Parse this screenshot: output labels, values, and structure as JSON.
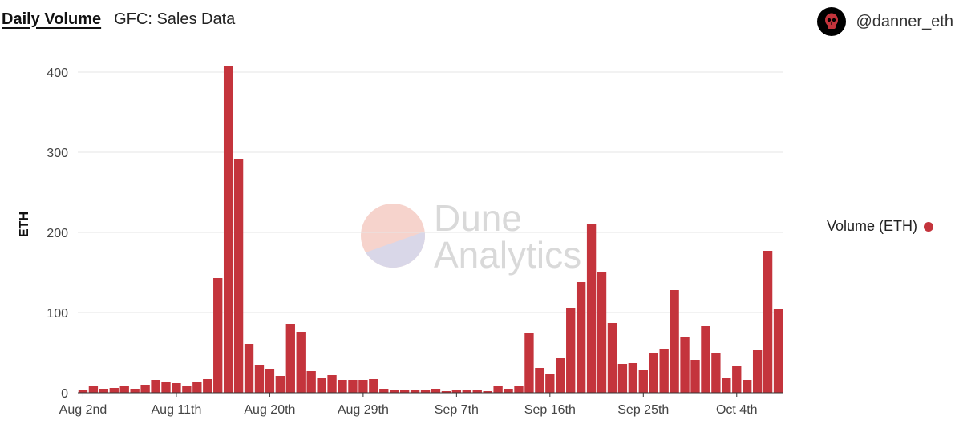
{
  "header": {
    "title": "Daily Volume",
    "subtitle": "GFC: Sales Data"
  },
  "author": {
    "name": "@danner_eth"
  },
  "watermark": {
    "line1": "Dune",
    "line2": "Analytics"
  },
  "legend": {
    "label": "Volume (ETH)",
    "color": "#c4343c"
  },
  "chart_data": {
    "type": "bar",
    "title": "Daily Volume",
    "subtitle": "GFC: Sales Data",
    "ylabel": "ETH",
    "xlabel": "",
    "ylim": [
      0,
      420
    ],
    "yticks": [
      0,
      100,
      200,
      300,
      400
    ],
    "grid": true,
    "legend_position": "right",
    "bar_color": "#c4343c",
    "x_tick_labels": [
      {
        "index": 0,
        "label": "Aug 2nd"
      },
      {
        "index": 9,
        "label": "Aug 11th"
      },
      {
        "index": 18,
        "label": "Aug 20th"
      },
      {
        "index": 27,
        "label": "Aug 29th"
      },
      {
        "index": 36,
        "label": "Sep 7th"
      },
      {
        "index": 45,
        "label": "Sep 16th"
      },
      {
        "index": 54,
        "label": "Sep 25th"
      },
      {
        "index": 63,
        "label": "Oct 4th"
      }
    ],
    "series": [
      {
        "name": "Volume (ETH)",
        "values": [
          3,
          9,
          5,
          6,
          8,
          5,
          10,
          16,
          13,
          12,
          9,
          13,
          17,
          143,
          408,
          292,
          61,
          35,
          29,
          21,
          86,
          76,
          27,
          18,
          22,
          16,
          16,
          16,
          17,
          5,
          3,
          4,
          4,
          4,
          5,
          2,
          4,
          4,
          4,
          2,
          8,
          5,
          9,
          74,
          31,
          23,
          43,
          106,
          138,
          211,
          151,
          87,
          36,
          37,
          28,
          49,
          55,
          128,
          70,
          41,
          83,
          49,
          18,
          33,
          16,
          53,
          177,
          105
        ]
      }
    ]
  }
}
